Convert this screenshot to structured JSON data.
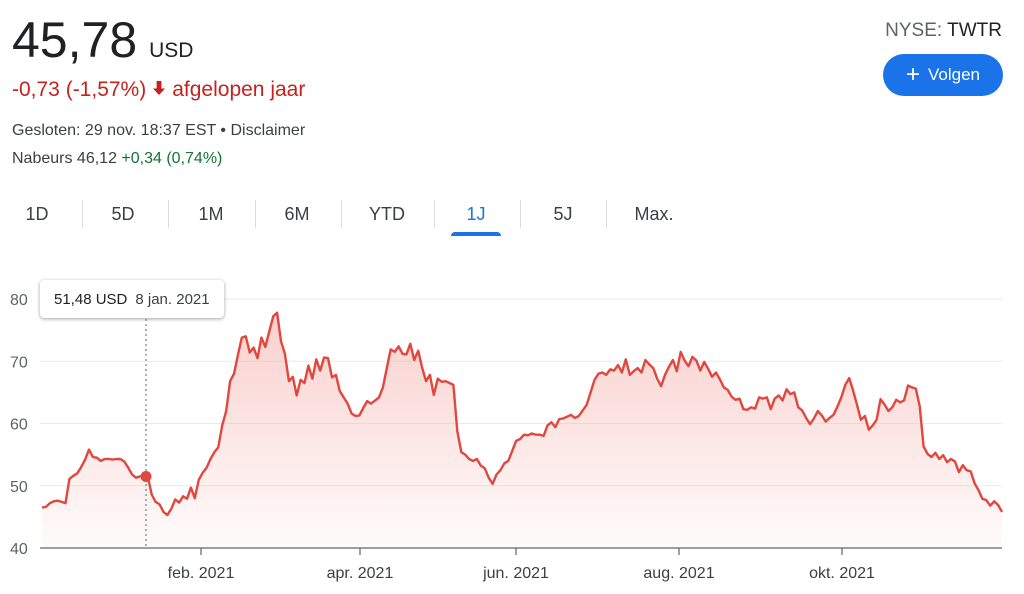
{
  "header": {
    "price": "45,78",
    "currency": "USD",
    "change": "-0,73 (-1,57%)",
    "change_period": "afgelopen jaar",
    "closed_text": "Gesloten: 29 nov. 18:37 EST • Disclaimer",
    "after_hours_label": "Nabeurs 46,12",
    "after_hours_change": "+0,34 (0,74%)",
    "ticker_exchange": "NYSE:",
    "ticker_symbol": "TWTR",
    "follow_label": "Volgen",
    "follow_icon": "plus-icon",
    "down_icon": "arrow-down-icon"
  },
  "tabs": [
    {
      "label": "1D"
    },
    {
      "label": "5D"
    },
    {
      "label": "1M"
    },
    {
      "label": "6M"
    },
    {
      "label": "YTD"
    },
    {
      "label": "1J",
      "active": true
    },
    {
      "label": "5J"
    },
    {
      "label": "Max."
    }
  ],
  "tooltip": {
    "price": "51,48 USD",
    "date": "8 jan. 2021"
  },
  "colors": {
    "line": "#e0483f",
    "fill": "#f4a9a4",
    "negative": "#c5221f",
    "positive": "#137333",
    "accent": "#1a73e8"
  },
  "chart_data": {
    "type": "area",
    "ylim": [
      40,
      80
    ],
    "yticks": [
      40,
      50,
      60,
      70,
      80
    ],
    "xticks": [
      "feb. 2021",
      "apr. 2021",
      "jun. 2021",
      "aug. 2021",
      "okt. 2021"
    ],
    "highlight": {
      "index": 27,
      "value": 51.48,
      "date": "8 jan. 2021"
    },
    "values": [
      46.5,
      46.6,
      47.2,
      47.5,
      47.6,
      47.4,
      47.2,
      51.1,
      51.6,
      52.0,
      53.0,
      54.2,
      55.8,
      54.6,
      54.5,
      54.0,
      54.3,
      54.3,
      54.2,
      54.3,
      54.3,
      53.9,
      52.9,
      51.8,
      51.3,
      51.5,
      51.7,
      51.5,
      48.6,
      47.4,
      47.0,
      45.8,
      45.3,
      46.3,
      47.8,
      47.3,
      48.3,
      47.9,
      49.7,
      48.0,
      50.9,
      52.1,
      52.9,
      54.3,
      55.4,
      56.2,
      59.7,
      62.0,
      66.8,
      68.0,
      71.0,
      73.8,
      74.0,
      71.4,
      72.2,
      70.5,
      73.8,
      72.3,
      74.8,
      77.2,
      77.8,
      73.2,
      71.2,
      66.8,
      67.5,
      64.5,
      67.0,
      66.5,
      69.3,
      67.2,
      70.3,
      68.5,
      70.6,
      70.5,
      67.4,
      67.8,
      65.2,
      64.2,
      63.2,
      61.6,
      61.2,
      61.3,
      62.5,
      63.6,
      63.2,
      63.7,
      64.2,
      65.8,
      68.9,
      71.9,
      71.5,
      72.4,
      71.2,
      71.1,
      72.8,
      70.2,
      71.7,
      69.0,
      66.8,
      67.8,
      64.6,
      67.2,
      66.7,
      66.8,
      66.5,
      66.2,
      58.8,
      55.4,
      55.0,
      54.3,
      54.0,
      54.3,
      53.2,
      52.8,
      51.3,
      50.3,
      51.8,
      52.5,
      53.6,
      54.0,
      55.6,
      57.2,
      57.5,
      58.2,
      58.1,
      58.4,
      58.2,
      58.2,
      58.0,
      59.7,
      60.2,
      59.4,
      60.7,
      60.8,
      61.1,
      61.4,
      60.9,
      61.2,
      62.1,
      63.0,
      65.0,
      67.0,
      68.0,
      68.2,
      67.8,
      68.7,
      68.5,
      69.4,
      68.2,
      70.3,
      67.8,
      68.4,
      68.9,
      68.2,
      70.2,
      69.5,
      68.9,
      67.2,
      66.0,
      67.8,
      69.1,
      70.2,
      68.4,
      71.5,
      70.1,
      69.2,
      70.7,
      70.1,
      68.5,
      69.9,
      68.8,
      67.5,
      68.2,
      67.1,
      65.8,
      65.4,
      64.3,
      63.8,
      64.0,
      62.3,
      62.2,
      62.6,
      62.4,
      64.2,
      64.0,
      64.2,
      62.3,
      64.0,
      64.5,
      63.7,
      65.5,
      64.7,
      65.0,
      62.6,
      62.1,
      60.9,
      59.9,
      60.8,
      62.0,
      61.3,
      60.3,
      60.9,
      61.4,
      62.7,
      64.2,
      66.2,
      67.3,
      65.3,
      63.0,
      60.6,
      61.2,
      59.0,
      59.7,
      60.6,
      63.9,
      63.1,
      62.0,
      62.6,
      63.8,
      63.4,
      63.7,
      66.1,
      65.8,
      65.6,
      62.8,
      56.3,
      55.1,
      54.6,
      55.3,
      54.3,
      54.9,
      53.8,
      54.3,
      53.9,
      52.2,
      53.3,
      52.5,
      52.3,
      50.4,
      49.3,
      47.9,
      47.7,
      46.8,
      47.5,
      46.9,
      45.8
    ]
  }
}
